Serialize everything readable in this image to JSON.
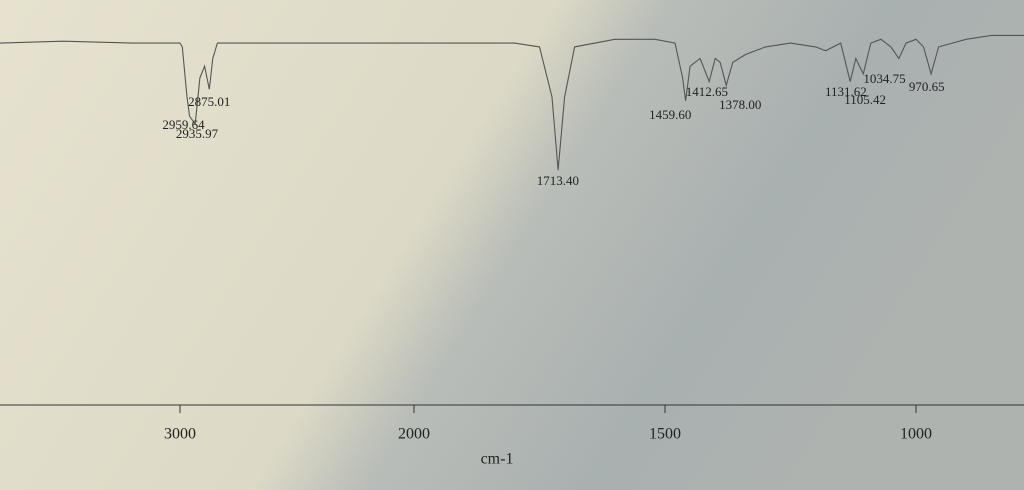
{
  "chart_data": {
    "type": "spectrum",
    "x_label": "cm-1",
    "xlim": [
      3770,
      780
    ],
    "xticks": [
      3000,
      2000,
      1500,
      1000
    ],
    "ylim": [
      0,
      100
    ],
    "color": "#555555",
    "series": [
      {
        "x": [
          3770,
          3500,
          3200,
          3000,
          2990,
          2970,
          2959,
          2935,
          2915,
          2895,
          2875,
          2860,
          2840,
          2500,
          2000,
          1800,
          1750,
          1725,
          1713,
          1700,
          1680,
          1600,
          1520,
          1480,
          1465,
          1459,
          1450,
          1430,
          1412,
          1400,
          1390,
          1378,
          1365,
          1340,
          1300,
          1250,
          1200,
          1180,
          1150,
          1131,
          1120,
          1105,
          1090,
          1070,
          1050,
          1034,
          1020,
          1000,
          985,
          970,
          955,
          900,
          850,
          780
        ],
        "values": [
          94,
          94.5,
          94,
          94,
          93,
          80,
          75,
          73,
          85,
          88,
          82,
          90,
          94,
          94,
          94,
          94,
          93,
          80,
          61,
          80,
          93,
          95,
          95,
          94,
          85,
          79,
          88,
          90,
          84,
          90,
          89,
          83,
          89,
          91,
          93,
          94,
          93,
          92,
          94,
          84,
          90,
          86,
          94,
          95,
          93,
          90,
          94,
          95,
          93,
          86,
          93,
          95,
          96,
          96
        ]
      }
    ],
    "peaks": [
      {
        "value": 2875.01,
        "label": "2875.01"
      },
      {
        "value": 2959.64,
        "label": "2959.64"
      },
      {
        "value": 2935.97,
        "label": "2935.97"
      },
      {
        "value": 1713.4,
        "label": "1713.40"
      },
      {
        "value": 1412.65,
        "label": "1412.65"
      },
      {
        "value": 1378.0,
        "label": "1378.00"
      },
      {
        "value": 1459.6,
        "label": "1459.60"
      },
      {
        "value": 1131.62,
        "label": "1131.62"
      },
      {
        "value": 1105.42,
        "label": "1105.42"
      },
      {
        "value": 1034.75,
        "label": "1034.75"
      },
      {
        "value": 970.65,
        "label": "970.65"
      }
    ]
  }
}
